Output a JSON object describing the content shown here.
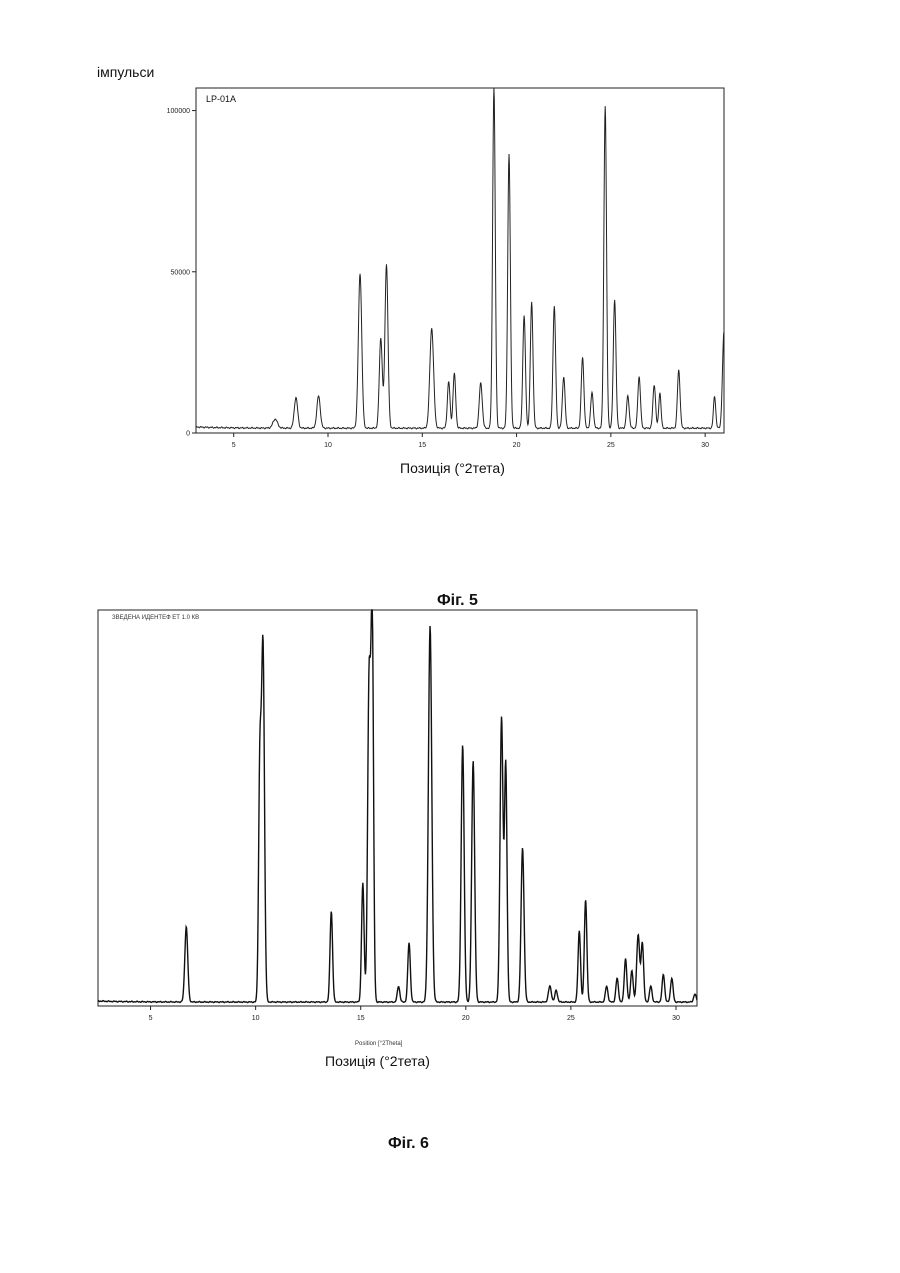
{
  "page": {
    "fig5_caption": "Фіг. 5",
    "fig6_caption": "Фіг. 6"
  },
  "chart_data": [
    {
      "type": "line",
      "title": "LP-01A",
      "ylabel": "імпульси",
      "xlabel": "Позиція (°2тета)",
      "xlim": [
        3,
        31
      ],
      "ylim": [
        0,
        107000
      ],
      "xticks": [
        5,
        10,
        15,
        20,
        25,
        30
      ],
      "yticks": [
        0,
        50000,
        100000
      ],
      "ytick_labels": [
        "0",
        "50000",
        "100000"
      ],
      "grid": false,
      "baseline": 1500,
      "peaks": [
        {
          "x": 7.2,
          "y": 2800,
          "w": 0.12
        },
        {
          "x": 8.3,
          "y": 9500,
          "w": 0.09
        },
        {
          "x": 9.5,
          "y": 10000,
          "w": 0.09
        },
        {
          "x": 11.7,
          "y": 48000,
          "w": 0.09
        },
        {
          "x": 12.8,
          "y": 28000,
          "w": 0.08
        },
        {
          "x": 13.1,
          "y": 51000,
          "w": 0.08
        },
        {
          "x": 15.5,
          "y": 31000,
          "w": 0.1
        },
        {
          "x": 16.4,
          "y": 14500,
          "w": 0.07
        },
        {
          "x": 16.7,
          "y": 17000,
          "w": 0.07
        },
        {
          "x": 18.1,
          "y": 14000,
          "w": 0.08
        },
        {
          "x": 18.8,
          "y": 106000,
          "w": 0.07
        },
        {
          "x": 19.6,
          "y": 85000,
          "w": 0.07
        },
        {
          "x": 20.4,
          "y": 35000,
          "w": 0.07
        },
        {
          "x": 20.8,
          "y": 39000,
          "w": 0.07
        },
        {
          "x": 22.0,
          "y": 38000,
          "w": 0.07
        },
        {
          "x": 22.5,
          "y": 16000,
          "w": 0.07
        },
        {
          "x": 23.5,
          "y": 22000,
          "w": 0.07
        },
        {
          "x": 24.0,
          "y": 11000,
          "w": 0.07
        },
        {
          "x": 24.7,
          "y": 100000,
          "w": 0.07
        },
        {
          "x": 25.2,
          "y": 40000,
          "w": 0.07
        },
        {
          "x": 25.9,
          "y": 10000,
          "w": 0.07
        },
        {
          "x": 26.5,
          "y": 16000,
          "w": 0.07
        },
        {
          "x": 27.3,
          "y": 13500,
          "w": 0.07
        },
        {
          "x": 27.6,
          "y": 11000,
          "w": 0.06
        },
        {
          "x": 28.6,
          "y": 18000,
          "w": 0.07
        },
        {
          "x": 30.5,
          "y": 10000,
          "w": 0.06
        },
        {
          "x": 31.0,
          "y": 30000,
          "w": 0.08
        }
      ]
    },
    {
      "type": "line",
      "title": "",
      "header_text": "ЗВЕДЕНА ИДЕНТЕФ ЕТ 1.0 КВ",
      "xlabel": "Позиція (°2тета)",
      "sub_xlabel": "Position [°2Theta]",
      "xlim": [
        2.5,
        31
      ],
      "ylim": [
        0,
        100
      ],
      "xticks": [
        5,
        10,
        15,
        20,
        25,
        30
      ],
      "grid": false,
      "baseline": 1,
      "peaks": [
        {
          "x": 6.7,
          "y": 19,
          "w": 0.07
        },
        {
          "x": 10.2,
          "y": 58,
          "w": 0.06
        },
        {
          "x": 10.35,
          "y": 90,
          "w": 0.07
        },
        {
          "x": 13.6,
          "y": 23,
          "w": 0.06
        },
        {
          "x": 15.1,
          "y": 30,
          "w": 0.06
        },
        {
          "x": 15.4,
          "y": 82,
          "w": 0.07
        },
        {
          "x": 15.55,
          "y": 94,
          "w": 0.06
        },
        {
          "x": 16.8,
          "y": 4,
          "w": 0.06
        },
        {
          "x": 17.3,
          "y": 15,
          "w": 0.06
        },
        {
          "x": 18.3,
          "y": 95,
          "w": 0.08
        },
        {
          "x": 19.85,
          "y": 65,
          "w": 0.07
        },
        {
          "x": 20.35,
          "y": 61,
          "w": 0.07
        },
        {
          "x": 21.7,
          "y": 72,
          "w": 0.07
        },
        {
          "x": 21.9,
          "y": 60,
          "w": 0.06
        },
        {
          "x": 22.7,
          "y": 39,
          "w": 0.07
        },
        {
          "x": 24.0,
          "y": 4,
          "w": 0.07
        },
        {
          "x": 24.3,
          "y": 3,
          "w": 0.06
        },
        {
          "x": 25.4,
          "y": 18,
          "w": 0.06
        },
        {
          "x": 25.7,
          "y": 26,
          "w": 0.06
        },
        {
          "x": 26.7,
          "y": 4,
          "w": 0.06
        },
        {
          "x": 27.2,
          "y": 6,
          "w": 0.06
        },
        {
          "x": 27.6,
          "y": 11,
          "w": 0.06
        },
        {
          "x": 27.9,
          "y": 8,
          "w": 0.06
        },
        {
          "x": 28.2,
          "y": 17,
          "w": 0.07
        },
        {
          "x": 28.4,
          "y": 15,
          "w": 0.06
        },
        {
          "x": 28.8,
          "y": 4,
          "w": 0.06
        },
        {
          "x": 29.4,
          "y": 7,
          "w": 0.06
        },
        {
          "x": 29.8,
          "y": 6,
          "w": 0.06
        },
        {
          "x": 30.9,
          "y": 2,
          "w": 0.06
        }
      ]
    }
  ]
}
